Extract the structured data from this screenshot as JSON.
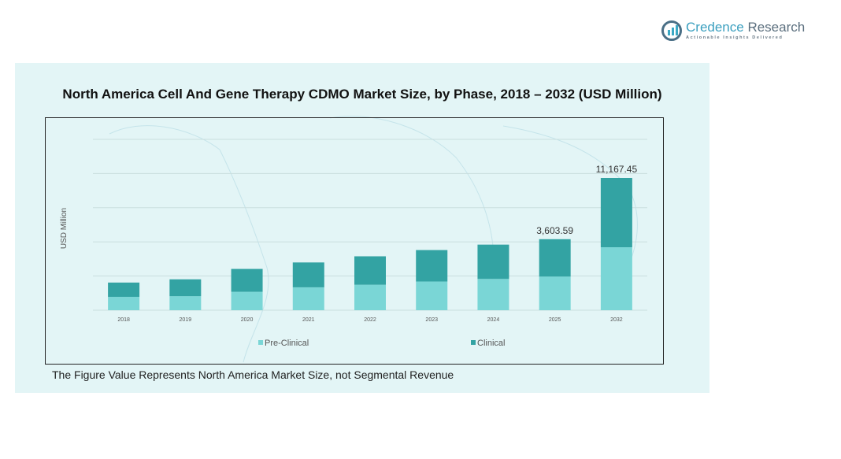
{
  "brand": {
    "name_part1": "Credence",
    "name_part2": " Research",
    "tagline": "Actionable Insights Delivered"
  },
  "footnote": "The Figure Value Represents North America Market Size, not Segmental Revenue",
  "colors": {
    "pre_clinical": "#7ad6d6",
    "clinical": "#33a3a3",
    "panel_bg": "#e3f5f6",
    "gridline": "#c9dede"
  },
  "chart_data": {
    "type": "bar",
    "stacked": true,
    "title": "North America Cell And Gene Therapy CDMO Market Size, by Phase, 2018 – 2032 (USD Million)",
    "xlabel": "",
    "ylabel": "USD Million",
    "categories": [
      "2018",
      "2019",
      "2020",
      "2021",
      "2022",
      "2023",
      "2024",
      "2025",
      "2032"
    ],
    "series": [
      {
        "name": "Pre-Clinical",
        "values": [
          312,
          360,
          600,
          840,
          1032,
          1272,
          1488,
          1705,
          5317
        ]
      },
      {
        "name": "Clinical",
        "values": [
          336,
          432,
          744,
          912,
          1152,
          1392,
          1632,
          1899,
          5850
        ]
      }
    ],
    "data_labels": [
      {
        "category": "2025",
        "text": "3,603.59"
      },
      {
        "category": "2032",
        "text": "11,167.45"
      }
    ],
    "grid": true,
    "legend": "bottom",
    "y_tick_labels_shown": false
  }
}
